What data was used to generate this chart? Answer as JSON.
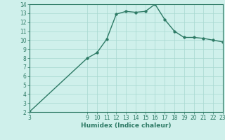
{
  "x": [
    3,
    9,
    10,
    11,
    12,
    13,
    14,
    15,
    16,
    17,
    18,
    19,
    20,
    21,
    22,
    23
  ],
  "y": [
    2.0,
    8.0,
    8.6,
    10.1,
    12.9,
    13.2,
    13.1,
    13.2,
    14.0,
    12.3,
    11.0,
    10.3,
    10.3,
    10.2,
    10.0,
    9.8
  ],
  "line_color": "#2d7a65",
  "bg_color": "#cff0eb",
  "grid_color": "#a8d8d0",
  "xlabel": "Humidex (Indice chaleur)",
  "xlim": [
    3,
    23
  ],
  "ylim": [
    2,
    14
  ],
  "xticks": [
    3,
    9,
    10,
    11,
    12,
    13,
    14,
    15,
    16,
    17,
    18,
    19,
    20,
    21,
    22,
    23
  ],
  "yticks": [
    2,
    3,
    4,
    5,
    6,
    7,
    8,
    9,
    10,
    11,
    12,
    13,
    14
  ],
  "tick_fontsize": 5.5,
  "xlabel_fontsize": 6.5,
  "marker_size": 2.5,
  "line_width": 1.0
}
